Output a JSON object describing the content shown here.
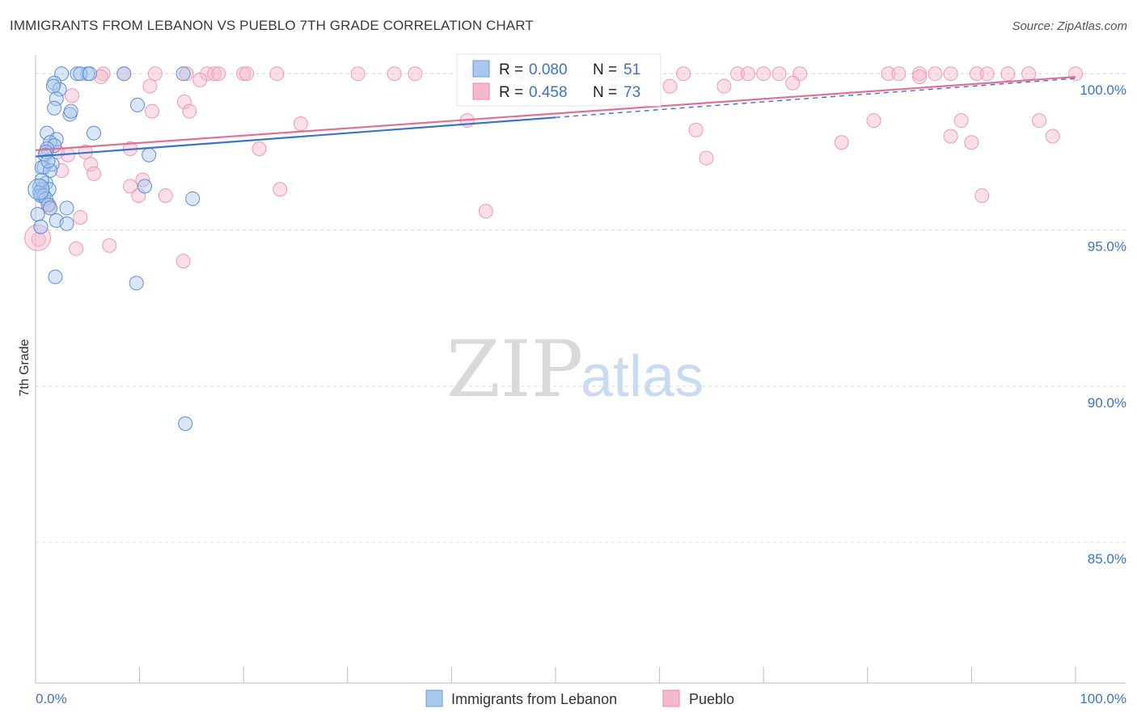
{
  "title": "IMMIGRANTS FROM LEBANON VS PUEBLO 7TH GRADE CORRELATION CHART",
  "source": "Source: ZipAtlas.com",
  "watermark": {
    "zip": "ZIP",
    "atlas": "atlas"
  },
  "colors": {
    "blue": "#3d74c4",
    "blue_fill": "#a9c8ef",
    "pink": "#e07098",
    "pink_fill": "#f6b8cb",
    "grid": "#d8d8d8",
    "axis_text": "#3d74c4"
  },
  "chart_data": {
    "type": "scatter",
    "title": "IMMIGRANTS FROM LEBANON VS PUEBLO 7TH GRADE CORRELATION CHART",
    "xlabel": "",
    "ylabel": "7th Grade",
    "xlim": [
      0,
      100
    ],
    "ylim": [
      80.5,
      100.6
    ],
    "x_tick_labels": [
      "0.0%",
      "100.0%"
    ],
    "y_ticks": [
      85,
      90,
      95,
      100
    ],
    "y_tick_labels": [
      "85.0%",
      "90.0%",
      "95.0%",
      "100.0%"
    ],
    "grid": true,
    "legend_position": "bottom-center",
    "series": [
      {
        "name": "Immigrants from Lebanon",
        "R": "0.080",
        "N": "51",
        "trend": {
          "x0": 0,
          "y0": 97.35,
          "x1": 100,
          "y1": 99.85,
          "solid_until": 50
        },
        "points": [
          [
            2.5,
            100
          ],
          [
            5,
            100
          ],
          [
            4,
            100
          ],
          [
            4.3,
            100
          ],
          [
            5.2,
            100
          ],
          [
            8.5,
            100
          ],
          [
            14.2,
            100
          ],
          [
            42.5,
            100
          ],
          [
            1.8,
            99.7
          ],
          [
            2.3,
            99.5
          ],
          [
            1.7,
            99.6
          ],
          [
            2,
            99.2
          ],
          [
            1.8,
            98.9
          ],
          [
            3.3,
            98.7
          ],
          [
            3.4,
            98.8
          ],
          [
            9.8,
            99
          ],
          [
            5.6,
            98.1
          ],
          [
            1.1,
            98.1
          ],
          [
            2,
            97.9
          ],
          [
            1.4,
            97.8
          ],
          [
            1.8,
            97.7
          ],
          [
            1.1,
            97.6
          ],
          [
            1,
            97.5
          ],
          [
            0.9,
            97.4
          ],
          [
            10.9,
            97.4
          ],
          [
            1.6,
            97.1
          ],
          [
            0.8,
            97
          ],
          [
            0.6,
            97
          ],
          [
            1.4,
            96.9
          ],
          [
            1,
            96.5
          ],
          [
            0.4,
            96.4
          ],
          [
            0.6,
            96.3
          ],
          [
            1.3,
            96.3
          ],
          [
            0.4,
            96.2
          ],
          [
            0.5,
            96.1
          ],
          [
            0.8,
            96.1
          ],
          [
            10.5,
            96.4
          ],
          [
            15.1,
            96
          ],
          [
            1,
            96
          ],
          [
            1.2,
            95.8
          ],
          [
            1.4,
            95.7
          ],
          [
            3,
            95.7
          ],
          [
            0.2,
            95.5
          ],
          [
            2,
            95.3
          ],
          [
            3,
            95.2
          ],
          [
            0.5,
            95.1
          ],
          [
            1.9,
            93.5
          ],
          [
            9.7,
            93.3
          ],
          [
            14.4,
            88.8
          ],
          [
            0.6,
            96.6
          ],
          [
            1.2,
            97.2
          ]
        ]
      },
      {
        "name": "Pueblo",
        "R": "0.458",
        "N": "73",
        "trend": {
          "x0": 0,
          "y0": 97.55,
          "x1": 100,
          "y1": 99.9,
          "solid_until": 100
        },
        "points": [
          [
            6.5,
            100
          ],
          [
            8.5,
            100
          ],
          [
            11.5,
            100
          ],
          [
            14.5,
            100
          ],
          [
            16.5,
            100
          ],
          [
            17.2,
            100
          ],
          [
            17.6,
            100
          ],
          [
            20,
            100
          ],
          [
            20.3,
            100
          ],
          [
            23.2,
            100
          ],
          [
            31,
            100
          ],
          [
            34.5,
            100
          ],
          [
            36.5,
            100
          ],
          [
            42,
            100
          ],
          [
            45,
            100
          ],
          [
            46.8,
            100
          ],
          [
            55.5,
            100
          ],
          [
            62.3,
            100
          ],
          [
            67.5,
            100
          ],
          [
            68.5,
            100
          ],
          [
            70,
            100
          ],
          [
            71.5,
            100
          ],
          [
            73.5,
            100
          ],
          [
            82,
            100
          ],
          [
            83,
            100
          ],
          [
            85,
            100
          ],
          [
            86.5,
            100
          ],
          [
            88,
            100
          ],
          [
            90.5,
            100
          ],
          [
            91.5,
            100
          ],
          [
            93.5,
            100
          ],
          [
            95.5,
            100
          ],
          [
            100,
            100
          ],
          [
            6.3,
            99.9
          ],
          [
            15.8,
            99.8
          ],
          [
            61,
            99.6
          ],
          [
            66.2,
            99.6
          ],
          [
            72.8,
            99.7
          ],
          [
            11,
            99.6
          ],
          [
            3.5,
            99.3
          ],
          [
            14.3,
            99.1
          ],
          [
            80.6,
            98.5
          ],
          [
            85,
            99.9
          ],
          [
            11.2,
            98.8
          ],
          [
            14.8,
            98.8
          ],
          [
            25.5,
            98.4
          ],
          [
            41.5,
            98.5
          ],
          [
            89,
            98.5
          ],
          [
            96.5,
            98.5
          ],
          [
            88,
            98
          ],
          [
            97.8,
            98
          ],
          [
            77.5,
            97.8
          ],
          [
            90,
            97.8
          ],
          [
            63.5,
            98.2
          ],
          [
            21.5,
            97.6
          ],
          [
            9.1,
            97.6
          ],
          [
            4.8,
            97.5
          ],
          [
            2.1,
            97.5
          ],
          [
            3.1,
            97.4
          ],
          [
            64.5,
            97.3
          ],
          [
            5.3,
            97.1
          ],
          [
            5.6,
            96.8
          ],
          [
            2.5,
            96.9
          ],
          [
            10.3,
            96.6
          ],
          [
            9.1,
            96.4
          ],
          [
            23.5,
            96.3
          ],
          [
            9.9,
            96.1
          ],
          [
            12.5,
            96.1
          ],
          [
            91,
            96.1
          ],
          [
            1.3,
            95.8
          ],
          [
            1.4,
            95.7
          ],
          [
            43.3,
            95.6
          ],
          [
            4.3,
            95.4
          ]
        ]
      }
    ],
    "extra_pink_points": [
      [
        3.9,
        94.4
      ],
      [
        7.1,
        94.5
      ],
      [
        14.2,
        94
      ],
      [
        0.3,
        94.7
      ]
    ]
  },
  "legend": {
    "series1": "Immigrants from Lebanon",
    "series2": "Pueblo"
  },
  "stats": {
    "r_label": "R =",
    "n_label": "N =",
    "s1_r": "0.080",
    "s1_n": "51",
    "s2_r": "0.458",
    "s2_n": "73"
  }
}
